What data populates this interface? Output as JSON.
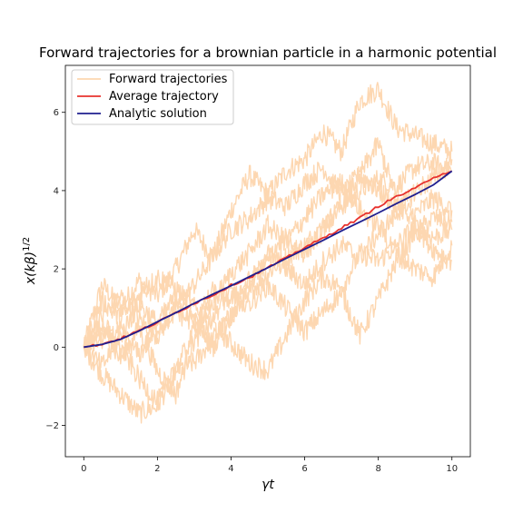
{
  "chart_data": {
    "type": "line",
    "title": "Forward trajectories for a brownian particle in a harmonic potential",
    "xlabel": "γt",
    "ylabel_base": "x(kβ)",
    "ylabel_sup": "1/2",
    "xlim": [
      -0.5,
      10.5
    ],
    "ylim": [
      -2.8,
      7.2
    ],
    "x_ticks": [
      0,
      2,
      4,
      6,
      8,
      10
    ],
    "y_ticks": [
      -2,
      0,
      2,
      4,
      6
    ],
    "x_tick_labels": [
      "0",
      "2",
      "4",
      "6",
      "8",
      "10"
    ],
    "y_tick_labels": [
      "−2",
      "0",
      "2",
      "4",
      "6"
    ],
    "grid": false,
    "legend_position": "top-left",
    "colors": {
      "forward": "#fdd7b1",
      "average": "#e8322e",
      "analytic": "#1f1f8f"
    },
    "legend": [
      "Forward trajectories",
      "Average trajectory",
      "Analytic solution"
    ],
    "series": [
      {
        "name": "Forward trajectories",
        "x": [
          0,
          0.5,
          1,
          1.5,
          2,
          2.5,
          3,
          3.5,
          4,
          4.5,
          5,
          5.5,
          6,
          6.5,
          7,
          7.5,
          8,
          8.5,
          9,
          9.5,
          10
        ],
        "trajectories": [
          [
            0,
            1.6,
            1.0,
            1.7,
            1.3,
            2.0,
            3.0,
            2.3,
            3.5,
            4.4,
            3.9,
            4.5,
            4.8,
            5.5,
            5.0,
            6.3,
            6.6,
            5.6,
            5.4,
            5.2,
            5.0
          ],
          [
            0,
            -0.7,
            -1.2,
            -1.7,
            -1.5,
            -0.6,
            -0.4,
            0.2,
            0.8,
            1.4,
            1.9,
            2.3,
            2.6,
            3.1,
            3.6,
            4.0,
            4.3,
            4.1,
            4.6,
            4.7,
            4.5
          ],
          [
            0,
            0.8,
            1.3,
            0.7,
            0.3,
            1.0,
            1.6,
            2.3,
            3.0,
            3.3,
            3.8,
            3.6,
            4.2,
            4.6,
            3.9,
            4.4,
            4.0,
            3.6,
            3.4,
            3.8,
            3.5
          ],
          [
            0,
            0.4,
            -0.3,
            0.5,
            -0.6,
            -1.2,
            0.2,
            0.6,
            0.1,
            -0.4,
            -0.6,
            0.3,
            1.2,
            1.8,
            1.5,
            2.4,
            2.2,
            2.6,
            3.1,
            2.8,
            3.0
          ],
          [
            0,
            1.2,
            0.7,
            1.3,
            1.8,
            1.5,
            1.0,
            0.8,
            1.4,
            1.1,
            1.6,
            1.0,
            0.4,
            0.9,
            1.4,
            0.3,
            1.2,
            2.2,
            2.9,
            3.3,
            3.2
          ],
          [
            0,
            0.2,
            0.4,
            -0.2,
            0.5,
            0.9,
            0.6,
            1.4,
            1.2,
            1.7,
            2.2,
            2.8,
            2.4,
            3.0,
            3.6,
            4.4,
            5.2,
            3.8,
            3.1,
            2.5,
            2.2
          ],
          [
            0,
            -0.5,
            0.3,
            1.1,
            0.6,
            1.3,
            0.7,
            0.0,
            0.8,
            1.5,
            2.4,
            2.0,
            1.6,
            2.2,
            2.6,
            2.3,
            2.9,
            3.4,
            4.0,
            4.3,
            4.8
          ],
          [
            0,
            0.6,
            0.0,
            -0.8,
            -1.4,
            -0.6,
            0.4,
            1.1,
            1.9,
            2.4,
            3.1,
            2.7,
            3.3,
            3.9,
            4.2,
            3.5,
            3.1,
            2.4,
            2.0,
            1.8,
            2.6
          ]
        ]
      },
      {
        "name": "Average trajectory",
        "x": [
          0,
          0.5,
          1,
          1.5,
          2,
          2.5,
          3,
          3.5,
          4,
          4.5,
          5,
          5.5,
          6,
          6.5,
          7,
          7.5,
          8,
          8.5,
          9,
          9.5,
          10
        ],
        "values": [
          0,
          0.08,
          0.22,
          0.42,
          0.63,
          0.88,
          1.12,
          1.33,
          1.58,
          1.78,
          2.03,
          2.28,
          2.55,
          2.78,
          3.05,
          3.3,
          3.6,
          3.85,
          4.05,
          4.35,
          4.5
        ]
      },
      {
        "name": "Analytic solution",
        "x": [
          0,
          0.5,
          1,
          1.5,
          2,
          2.5,
          3,
          3.5,
          4,
          4.5,
          5,
          5.5,
          6,
          6.5,
          7,
          7.5,
          8,
          8.5,
          9,
          9.5,
          10
        ],
        "values": [
          0,
          0.07,
          0.2,
          0.41,
          0.65,
          0.88,
          1.12,
          1.35,
          1.57,
          1.8,
          2.03,
          2.27,
          2.5,
          2.73,
          2.97,
          3.2,
          3.43,
          3.67,
          3.9,
          4.15,
          4.5
        ]
      }
    ]
  }
}
